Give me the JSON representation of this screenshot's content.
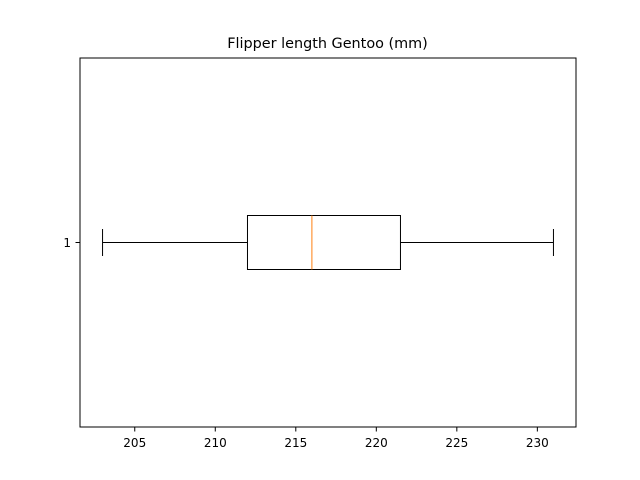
{
  "chart_data": {
    "type": "boxplot",
    "orientation": "horizontal",
    "title": "Flipper length Gentoo (mm)",
    "xlabel": "",
    "ylabel": "",
    "grid": false,
    "xlim": [
      201.6,
      232.4
    ],
    "x_ticks": [
      205,
      210,
      215,
      220,
      225,
      230
    ],
    "x_tick_labels": [
      "205",
      "210",
      "215",
      "220",
      "225",
      "230"
    ],
    "y_tick_labels": [
      "1"
    ],
    "boxes": [
      {
        "category": "1",
        "whisker_low": 203,
        "q1": 212,
        "median": 216,
        "q3": 221.5,
        "whisker_high": 231
      }
    ],
    "colors": {
      "box": "#000000",
      "median": "#ff7f0e",
      "axes": "#000000"
    }
  }
}
